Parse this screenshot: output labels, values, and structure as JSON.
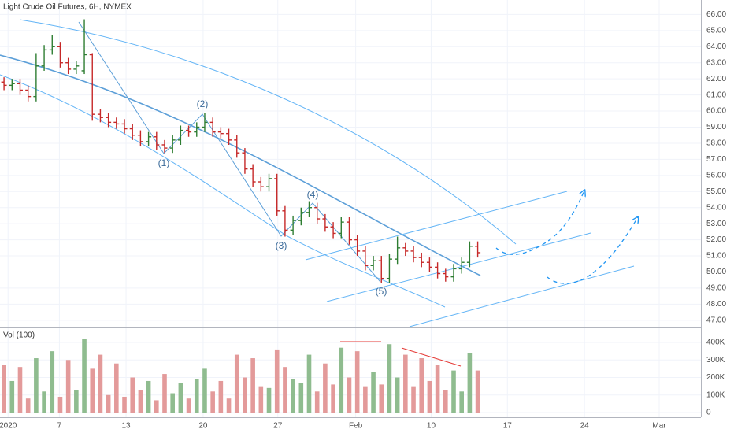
{
  "chart_data": {
    "type": "ohlc",
    "title": "Light Crude Oil Futures, 6H, NYMEX",
    "up_color": "#2e7d32",
    "down_color": "#c62828",
    "grid": true,
    "open": [
      61.8,
      61.6,
      61.7,
      61.3,
      60.9,
      62.8,
      63.8,
      64.0,
      63.0,
      62.6,
      62.5,
      63.5,
      59.8,
      59.6,
      59.3,
      59.2,
      58.9,
      58.5,
      58.1,
      58.4,
      57.9,
      57.7,
      58.2,
      58.8,
      58.7,
      59.0,
      59.3,
      58.7,
      58.6,
      58.2,
      57.4,
      56.4,
      55.6,
      55.3,
      55.8,
      53.8,
      52.6,
      53.2,
      53.7,
      54.0,
      53.3,
      52.8,
      52.4,
      53.1,
      52.0,
      51.3,
      50.4,
      50.7,
      49.6,
      50.8,
      51.5,
      51.3,
      50.9,
      50.6,
      50.3,
      49.9,
      49.7,
      50.2,
      50.6,
      51.6
    ],
    "high": [
      62.1,
      62.0,
      62.0,
      61.6,
      63.6,
      64.1,
      64.7,
      64.3,
      63.3,
      63.1,
      65.7,
      63.6,
      60.1,
      59.9,
      59.6,
      59.5,
      59.2,
      58.8,
      58.7,
      58.7,
      58.2,
      58.5,
      59.1,
      59.1,
      59.3,
      59.9,
      59.6,
      59.0,
      58.9,
      58.5,
      57.7,
      56.7,
      55.9,
      56.1,
      56.1,
      54.1,
      53.5,
      54.0,
      54.4,
      54.3,
      53.6,
      53.1,
      53.4,
      53.4,
      52.3,
      51.6,
      51.0,
      51.0,
      51.1,
      52.2,
      51.8,
      51.6,
      51.2,
      50.9,
      50.6,
      50.2,
      50.5,
      50.9,
      51.9,
      51.9
    ],
    "low": [
      61.3,
      61.3,
      61.0,
      60.6,
      60.6,
      62.5,
      63.5,
      62.7,
      62.3,
      62.3,
      62.3,
      59.4,
      59.3,
      59.0,
      58.9,
      58.6,
      58.2,
      57.8,
      57.8,
      57.6,
      57.4,
      57.4,
      57.9,
      58.4,
      58.4,
      58.7,
      58.4,
      58.3,
      57.9,
      57.1,
      56.1,
      55.3,
      55.0,
      55.0,
      53.5,
      52.2,
      52.3,
      52.9,
      53.4,
      53.0,
      52.5,
      52.1,
      52.1,
      51.7,
      51.0,
      50.1,
      50.1,
      49.3,
      49.3,
      50.5,
      51.0,
      50.6,
      50.3,
      50.0,
      49.6,
      49.4,
      49.4,
      49.9,
      50.3,
      50.9
    ],
    "close": [
      61.6,
      61.7,
      61.3,
      60.9,
      62.8,
      63.8,
      64.0,
      63.0,
      62.6,
      62.8,
      63.5,
      59.8,
      59.6,
      59.3,
      59.2,
      58.9,
      58.5,
      58.1,
      58.4,
      57.9,
      57.7,
      58.2,
      58.8,
      58.7,
      59.0,
      59.3,
      58.7,
      58.6,
      58.2,
      57.4,
      56.4,
      55.6,
      55.3,
      55.8,
      53.8,
      52.6,
      53.2,
      53.7,
      54.0,
      53.3,
      52.8,
      52.4,
      53.1,
      52.0,
      51.3,
      50.4,
      50.7,
      49.6,
      50.8,
      51.5,
      51.3,
      50.9,
      50.6,
      50.3,
      49.9,
      49.7,
      50.2,
      50.6,
      51.6,
      51.2
    ],
    "xlim": [
      -0.5,
      86.8
    ],
    "xticks": [
      {
        "value": 0.5,
        "label": "2020"
      },
      {
        "value": 6.9,
        "label": "7"
      },
      {
        "value": 15.2,
        "label": "13"
      },
      {
        "value": 24.8,
        "label": "20"
      },
      {
        "value": 34.1,
        "label": "27"
      },
      {
        "value": 43.8,
        "label": "Feb"
      },
      {
        "value": 53.2,
        "label": "10"
      },
      {
        "value": 62.7,
        "label": "17"
      },
      {
        "value": 72.3,
        "label": "24"
      },
      {
        "value": 81.6,
        "label": "Mar"
      }
    ],
    "ylim": [
      46.6,
      66.9
    ],
    "yticks": [
      {
        "value": 47,
        "label": "47.00"
      },
      {
        "value": 48,
        "label": "48.00"
      },
      {
        "value": 49,
        "label": "49.00"
      },
      {
        "value": 50,
        "label": "50.00"
      },
      {
        "value": 51,
        "label": "51.00"
      },
      {
        "value": 52,
        "label": "52.00"
      },
      {
        "value": 53,
        "label": "53.00"
      },
      {
        "value": 54,
        "label": "54.00"
      },
      {
        "value": 55,
        "label": "55.00"
      },
      {
        "value": 56,
        "label": "56.00"
      },
      {
        "value": 57,
        "label": "57.00"
      },
      {
        "value": 58,
        "label": "58.00"
      },
      {
        "value": 59,
        "label": "59.00"
      },
      {
        "value": 60,
        "label": "60.00"
      },
      {
        "value": 61,
        "label": "61.00"
      },
      {
        "value": 62,
        "label": "62.00"
      },
      {
        "value": 63,
        "label": "63.00"
      },
      {
        "value": 64,
        "label": "64.00"
      },
      {
        "value": 65,
        "label": "65.00"
      },
      {
        "value": 66,
        "label": "66.00"
      }
    ],
    "annotations": [
      "(1)",
      "(2)",
      "(3)",
      "(4)",
      "(5)"
    ],
    "volume": {
      "label": "Vol (100)",
      "up_color": "#8fbc8f",
      "down_color": "#e39a9a",
      "values": [
        270000,
        180000,
        260000,
        80000,
        310000,
        120000,
        350000,
        90000,
        300000,
        130000,
        420000,
        250000,
        330000,
        100000,
        280000,
        90000,
        200000,
        130000,
        180000,
        70000,
        220000,
        110000,
        170000,
        80000,
        190000,
        250000,
        120000,
        180000,
        80000,
        330000,
        200000,
        310000,
        150000,
        140000,
        360000,
        260000,
        190000,
        170000,
        330000,
        120000,
        280000,
        160000,
        370000,
        200000,
        350000,
        150000,
        230000,
        160000,
        390000,
        200000,
        330000,
        150000,
        310000,
        180000,
        270000,
        130000,
        240000,
        120000,
        340000,
        240000
      ],
      "ylim": [
        -27000,
        490000
      ],
      "yticks": [
        0,
        {
          "value": 100000,
          "label": "100K"
        },
        {
          "value": 200000,
          "label": "200K"
        },
        {
          "value": 300000,
          "label": "300K"
        },
        {
          "value": 400000,
          "label": "400K"
        }
      ]
    }
  }
}
